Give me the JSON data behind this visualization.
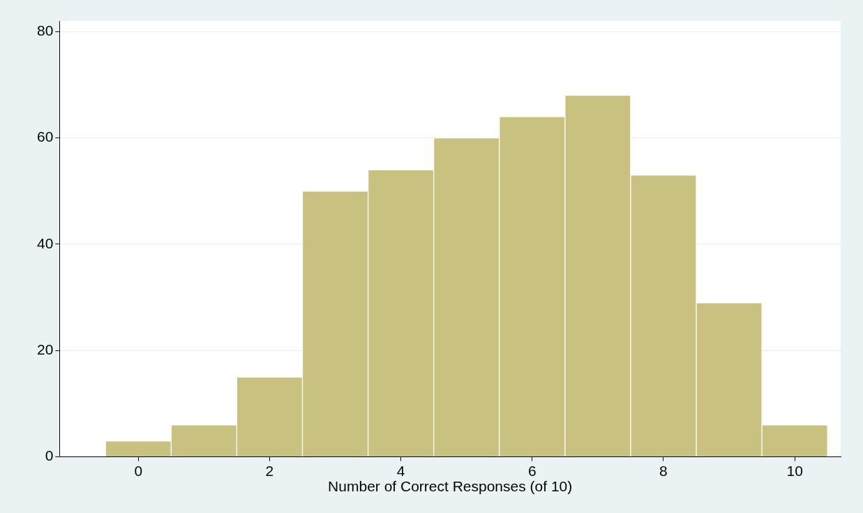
{
  "chart_data": {
    "type": "histogram",
    "xlabel": "Number of Correct Responses (of 10)",
    "bins": [
      -0.5,
      0.5,
      1.5,
      2.5,
      3.5,
      4.5,
      5.5,
      6.5,
      7.5,
      8.5,
      9.5,
      10.5
    ],
    "values": [
      3,
      6,
      15,
      50,
      54,
      60,
      64,
      68,
      53,
      29,
      6
    ],
    "color": "#c9c17f",
    "xlim": [
      -1.2,
      10.7
    ],
    "xticks": [
      0,
      2,
      4,
      6,
      8,
      10
    ],
    "ylim": [
      0,
      82
    ],
    "yticks": [
      0,
      20,
      40,
      60,
      80
    ],
    "grid": "y",
    "legend": false
  }
}
